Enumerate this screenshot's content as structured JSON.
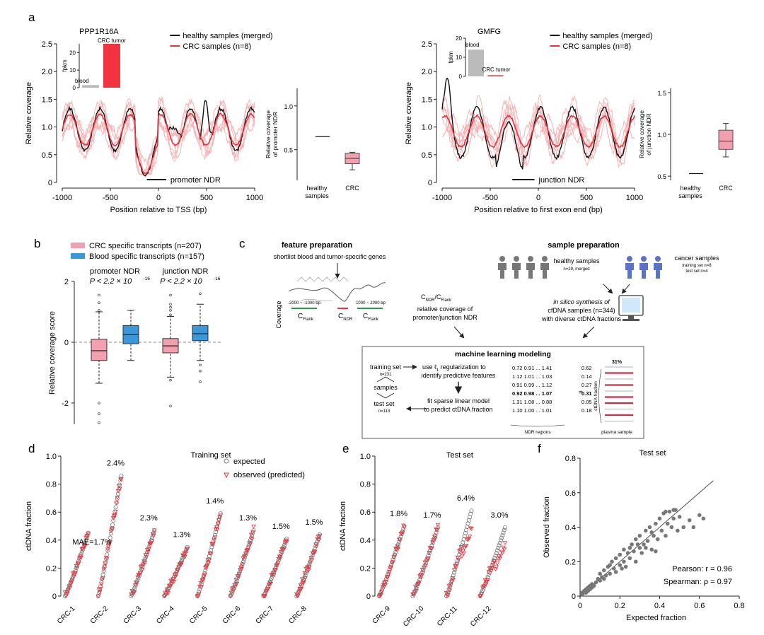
{
  "panel_labels": {
    "a": "a",
    "b": "b",
    "c": "c",
    "d": "d",
    "e": "e",
    "f": "f"
  },
  "colors": {
    "healthy": "#111111",
    "crc": "#e8333b",
    "crc_light": "#f5b4b6",
    "crc_box": "#f2a0b0",
    "blood_box": "#3b98d8",
    "blood_bar": "#bbbbbb",
    "tumor_bar": "#f0333e",
    "expected": "#777777",
    "observed": "#e8333b",
    "scatter": "#777777",
    "green": "#2a9a48"
  },
  "chart_data": [
    {
      "id": "a-left",
      "type": "line",
      "gene": "PPP1R16A",
      "ylabel": "Relative coverage",
      "xlabel": "Position relative to TSS (bp)",
      "xlim": [
        -1000,
        1000
      ],
      "ylim": [
        0,
        2.5
      ],
      "xticks": [
        "-1000",
        "-500",
        "0",
        "500",
        "1000"
      ],
      "yticks": [
        "0",
        "0.5",
        "1.0",
        "1.5",
        "2.0",
        "2.5"
      ],
      "legend": [
        "healthy samples (merged)",
        "CRC samples (n=8)"
      ],
      "region_label": "promoter NDR",
      "region": [
        -120,
        80
      ],
      "inset": {
        "ylabel": "fpkm",
        "yticks": [
          "0",
          "10",
          "20"
        ],
        "ymax": 25,
        "categories": [
          "blood",
          "CRC tumor"
        ],
        "values": [
          1.5,
          25
        ]
      }
    },
    {
      "id": "a-left-box",
      "type": "box",
      "ylabel": "Relative coverage of promoter NDR",
      "yticks": [
        "0.5",
        "1.0"
      ],
      "ylim": [
        0.15,
        1.2
      ],
      "categories": [
        "healthy samples",
        "CRC"
      ],
      "healthy_value": 0.65,
      "crc": {
        "whisker_low": 0.27,
        "q1": 0.34,
        "median": 0.4,
        "q3": 0.46,
        "whisker_high": 0.47
      }
    },
    {
      "id": "a-right",
      "type": "line",
      "gene": "GMFG",
      "ylabel": "Relative coverage",
      "xlabel": "Position relative to first exon end (bp)",
      "xlim": [
        -1000,
        1000
      ],
      "ylim": [
        0,
        2.5
      ],
      "xticks": [
        "-1000",
        "-500",
        "0",
        "500",
        "1000"
      ],
      "yticks": [
        "0",
        "0.5",
        "1.0",
        "1.5",
        "2.0",
        "2.5"
      ],
      "legend": [
        "healthy samples (merged)",
        "CRC samples (n=8)"
      ],
      "region_label": "junction NDR",
      "region": [
        -270,
        -40
      ],
      "inset": {
        "ylabel": "fpkm",
        "yticks": [
          "0",
          "10",
          "20"
        ],
        "ymax": 20,
        "categories": [
          "blood",
          "CRC tumor"
        ],
        "values": [
          14,
          0.6
        ]
      }
    },
    {
      "id": "a-right-box",
      "type": "box",
      "ylabel": "Relative coverage of junction NDR",
      "yticks": [
        "0.5",
        "1.0",
        "1.5"
      ],
      "ylim": [
        0.45,
        1.55
      ],
      "categories": [
        "healthy samples",
        "CRC"
      ],
      "healthy_value": 0.53,
      "crc": {
        "whisker_low": 0.73,
        "q1": 0.82,
        "median": 0.92,
        "q3": 1.05,
        "whisker_high": 1.13
      }
    },
    {
      "id": "b",
      "type": "box",
      "ylabel": "Relative coverage score",
      "ylim": [
        -2.7,
        2
      ],
      "yticks": [
        "-2",
        "0",
        "2"
      ],
      "legend": [
        "CRC specific transcripts (n=207)",
        "Blood specific transcripts (n=157)"
      ],
      "groups": [
        {
          "title": "promoter NDR",
          "pvalue": "P < 2.2 × 10",
          "exponent": "-16",
          "crc": {
            "whisker_low": -1.35,
            "q1": -0.6,
            "median": -0.28,
            "q3": 0.1,
            "whisker_high": 1.0,
            "outliers": [
              -2.0,
              -2.35,
              -2.65,
              1.05,
              1.3,
              1.55
            ]
          },
          "blood": {
            "whisker_low": -0.6,
            "q1": -0.05,
            "median": 0.25,
            "q3": 0.55,
            "whisker_high": 1.05,
            "outliers": []
          }
        },
        {
          "title": "junction NDR",
          "pvalue": "P < 2.2 × 10",
          "exponent": "-16",
          "crc": {
            "whisker_low": -1.15,
            "q1": -0.35,
            "median": -0.12,
            "q3": 0.12,
            "whisker_high": 0.85,
            "outliers": [
              -1.25,
              -2.1,
              0.9,
              1.05,
              1.15,
              1.25,
              1.55
            ]
          },
          "blood": {
            "whisker_low": -0.6,
            "q1": 0.05,
            "median": 0.28,
            "q3": 0.55,
            "whisker_high": 1.25,
            "outliers": [
              -0.75,
              -0.95,
              -1.3,
              1.6
            ]
          }
        }
      ]
    },
    {
      "id": "d",
      "type": "scatter",
      "title": "Training set",
      "ylabel": "ctDNA fraction",
      "ylim": [
        0,
        1
      ],
      "yticks": [
        "0",
        "0.2",
        "0.4",
        "0.6",
        "0.8",
        "1.0"
      ],
      "legend": [
        "expected",
        "observed (predicted)"
      ],
      "mae_label": "MAE=1.7%",
      "samples": [
        {
          "name": "CRC-1",
          "max": 0.45,
          "label": ""
        },
        {
          "name": "CRC-2",
          "max": 0.86,
          "label": "2.4%"
        },
        {
          "name": "CRC-3",
          "max": 0.47,
          "label": "2.3%"
        },
        {
          "name": "CRC-4",
          "max": 0.35,
          "label": "1.3%"
        },
        {
          "name": "CRC-5",
          "max": 0.59,
          "label": "1.4%"
        },
        {
          "name": "CRC-6",
          "max": 0.47,
          "label": "1.3%"
        },
        {
          "name": "CRC-7",
          "max": 0.41,
          "label": "1.5%"
        },
        {
          "name": "CRC-8",
          "max": 0.44,
          "label": "1.5%"
        }
      ]
    },
    {
      "id": "e",
      "type": "scatter",
      "title": "Test set",
      "ylabel": "ctDNA fraction",
      "ylim": [
        0,
        1
      ],
      "yticks": [
        "0",
        "0.2",
        "0.4",
        "0.6",
        "0.8",
        "1.0"
      ],
      "samples": [
        {
          "name": "CRC-9",
          "max": 0.5,
          "label": "1.8%"
        },
        {
          "name": "CRC-10",
          "max": 0.49,
          "label": "1.7%"
        },
        {
          "name": "CRC-11",
          "max": 0.61,
          "label": "6.4%"
        },
        {
          "name": "CRC-12",
          "max": 0.49,
          "label": "3.0%"
        }
      ]
    },
    {
      "id": "f",
      "type": "scatter",
      "title": "Test set",
      "xlabel": "Expected fraction",
      "ylabel": "Observed fraction",
      "xlim": [
        0,
        0.8
      ],
      "ylim": [
        0,
        0.8
      ],
      "xticks": [
        "0",
        "0.2",
        "0.4",
        "0.6",
        "0.8"
      ],
      "yticks": [
        "0",
        "0.2",
        "0.4",
        "0.6",
        "0.8"
      ],
      "stats": [
        "Pearson: r = 0.96",
        "Spearman: ρ = 0.97"
      ],
      "points": [
        [
          0.01,
          0.01
        ],
        [
          0.01,
          0.02
        ],
        [
          0.02,
          0.02
        ],
        [
          0.02,
          0.03
        ],
        [
          0.03,
          0.02
        ],
        [
          0.03,
          0.04
        ],
        [
          0.04,
          0.03
        ],
        [
          0.04,
          0.05
        ],
        [
          0.05,
          0.04
        ],
        [
          0.05,
          0.06
        ],
        [
          0.06,
          0.05
        ],
        [
          0.06,
          0.07
        ],
        [
          0.07,
          0.06
        ],
        [
          0.08,
          0.08
        ],
        [
          0.09,
          0.1
        ],
        [
          0.1,
          0.09
        ],
        [
          0.1,
          0.13
        ],
        [
          0.12,
          0.1
        ],
        [
          0.12,
          0.15
        ],
        [
          0.13,
          0.12
        ],
        [
          0.14,
          0.17
        ],
        [
          0.15,
          0.13
        ],
        [
          0.16,
          0.2
        ],
        [
          0.17,
          0.16
        ],
        [
          0.18,
          0.14
        ],
        [
          0.18,
          0.22
        ],
        [
          0.2,
          0.18
        ],
        [
          0.2,
          0.24
        ],
        [
          0.22,
          0.2
        ],
        [
          0.22,
          0.27
        ],
        [
          0.23,
          0.17
        ],
        [
          0.24,
          0.25
        ],
        [
          0.25,
          0.22
        ],
        [
          0.26,
          0.3
        ],
        [
          0.27,
          0.26
        ],
        [
          0.28,
          0.2
        ],
        [
          0.28,
          0.33
        ],
        [
          0.3,
          0.28
        ],
        [
          0.3,
          0.35
        ],
        [
          0.31,
          0.25
        ],
        [
          0.32,
          0.3
        ],
        [
          0.33,
          0.38
        ],
        [
          0.34,
          0.32
        ],
        [
          0.35,
          0.4
        ],
        [
          0.36,
          0.27
        ],
        [
          0.37,
          0.35
        ],
        [
          0.38,
          0.42
        ],
        [
          0.39,
          0.33
        ],
        [
          0.4,
          0.45
        ],
        [
          0.41,
          0.38
        ],
        [
          0.42,
          0.48
        ],
        [
          0.43,
          0.35
        ],
        [
          0.44,
          0.42
        ],
        [
          0.45,
          0.49
        ],
        [
          0.46,
          0.4
        ],
        [
          0.47,
          0.45
        ],
        [
          0.48,
          0.5
        ],
        [
          0.49,
          0.38
        ],
        [
          0.5,
          0.46
        ],
        [
          0.52,
          0.4
        ],
        [
          0.55,
          0.44
        ],
        [
          0.57,
          0.4
        ],
        [
          0.6,
          0.47
        ],
        [
          0.62,
          0.45
        ],
        [
          0.38,
          0.26
        ],
        [
          0.33,
          0.28
        ],
        [
          0.29,
          0.3
        ],
        [
          0.21,
          0.16
        ],
        [
          0.15,
          0.18
        ],
        [
          0.11,
          0.11
        ],
        [
          0.43,
          0.49
        ],
        [
          0.47,
          0.5
        ],
        [
          0.36,
          0.37
        ],
        [
          0.25,
          0.28
        ]
      ]
    }
  ],
  "panel_c": {
    "feature_title": "feature preparation",
    "feature_sub": "shortlist blood and tumor-specific genes",
    "coverage_label": "Coverage",
    "left_range": "-2000 ~ -1000 bp",
    "right_range": "1000 ~ 2000 bp",
    "c_flank": "C",
    "flank_sub": "Flank",
    "c_ndr": "C",
    "ndr_sub": "NDR",
    "ratio_label": "C",
    "ratio_num_sub": "NDR",
    "ratio_slash": "/C",
    "ratio_den_sub": "Flank",
    "ratio_line1": "relative coverage of",
    "ratio_line2": "promoter/junction NDR",
    "sample_title": "sample preparation",
    "healthy_label": "healthy samples",
    "healthy_sub": "n=29, merged",
    "cancer_label": "cancer samples",
    "cancer_sub1": "training set n=8",
    "cancer_sub2": "test set n=4",
    "synth_line1": "in silico synthesis of",
    "synth_line2": "cfDNA samples (n=344)",
    "synth_line3": "with diverse ctDNA fractions",
    "ml_title": "machine learning modeling",
    "training_set": "training set",
    "training_n": "n=231",
    "samples_label": "samples",
    "test_set": "test set",
    "test_n": "n=113",
    "step1a": "use ℓ",
    "step1a_sub": "1",
    "step1a_end": " regularization to",
    "step1b": "identify predictive features",
    "step2a": "fit sparse linear model",
    "step2b": "to predict ctDNA fraction",
    "matrix_rows": [
      "0.72  0.91 ... 1.41",
      "1.12  1.01 ... 1.03",
      "0.91  0.99 ... 1.12",
      "0.92  0.98 ... 1.07",
      "1.31  1.08 ... 0.88",
      "1.10  1.00 ... 1.01"
    ],
    "fraction_col": [
      "0.62",
      "0.14",
      "0.27",
      "0.31",
      "0.05",
      "0.18"
    ],
    "equals": "=",
    "ndr_regions": "NDR regions",
    "pct_label": "31%",
    "ctdna_fraction": "ctDNA fraction",
    "plasma_sample": "plasma sample"
  }
}
